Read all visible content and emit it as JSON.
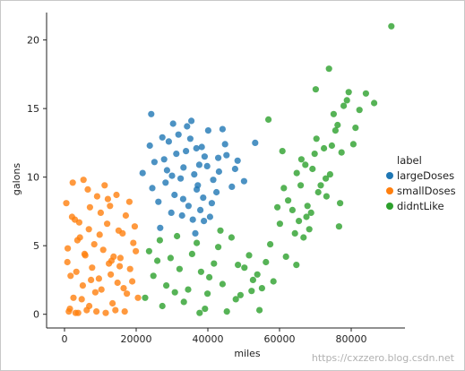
{
  "chart_data": {
    "type": "scatter",
    "title": "",
    "xlabel": "miles",
    "ylabel": "galons",
    "xlim": [
      -5000,
      95000
    ],
    "ylim": [
      -1,
      22
    ],
    "x_ticks": [
      0,
      20000,
      40000,
      60000,
      80000
    ],
    "x_tick_labels": [
      "0",
      "20000",
      "40000",
      "60000",
      "80000"
    ],
    "y_ticks": [
      0,
      5,
      10,
      15,
      20
    ],
    "y_tick_labels": [
      "0",
      "5",
      "10",
      "15",
      "20"
    ],
    "grid": false,
    "legend": {
      "title": "label",
      "placement": "right",
      "entries": [
        "largeDoses",
        "smallDoses",
        "didntLike"
      ]
    },
    "series": [
      {
        "name": "largeDoses",
        "color": "#1f77b4",
        "x": [
          30000,
          24500,
          27800,
          33200,
          36800,
          41500,
          45200,
          38700,
          29100,
          34600,
          43100,
          31800,
          37200,
          26200,
          48300,
          39800,
          35100,
          28600,
          42400,
          33900,
          40100,
          25100,
          46700,
          37900,
          32400,
          30700,
          44800,
          36200,
          27300,
          39100,
          35800,
          41100,
          29800,
          34200,
          38300,
          31200,
          47600,
          36900,
          33100,
          23800,
          28200,
          42900,
          37600,
          40600,
          35400,
          30300,
          44100,
          26700,
          38900,
          32800,
          24200,
          50100,
          36500,
          21800,
          53200
        ],
        "y": [
          10.1,
          9.2,
          11.3,
          10.7,
          12.1,
          9.8,
          11.6,
          8.5,
          12.6,
          7.9,
          10.4,
          13.1,
          9.4,
          8.2,
          11.2,
          10.8,
          12.8,
          10.5,
          8.9,
          11.9,
          13.4,
          11.1,
          9.3,
          7.6,
          9.9,
          8.7,
          12.4,
          10.2,
          12.9,
          11.5,
          6.9,
          8.1,
          7.4,
          13.7,
          12.2,
          11.7,
          10.6,
          9.1,
          8.4,
          12.3,
          9.6,
          11.4,
          10.9,
          7.1,
          14.1,
          13.9,
          13.5,
          6.3,
          6.8,
          7.2,
          14.6,
          9.7,
          5.9,
          10.3,
          12.5
        ]
      },
      {
        "name": "smallDoses",
        "color": "#ff7f0e",
        "x": [
          1200,
          3800,
          6200,
          8900,
          11500,
          14200,
          16800,
          2500,
          5100,
          7700,
          10300,
          12900,
          15600,
          18300,
          900,
          4300,
          6800,
          9600,
          13100,
          17400,
          2100,
          5600,
          8300,
          11900,
          14800,
          19200,
          3300,
          7100,
          10800,
          15100,
          500,
          4800,
          9100,
          12400,
          16200,
          18900,
          2900,
          6500,
          10100,
          13700,
          17100,
          1700,
          5300,
          8600,
          12100,
          15400,
          19600,
          3600,
          7400,
          11200,
          14500,
          800,
          4100,
          6900,
          9800,
          13400,
          16500,
          2300,
          5800,
          12700,
          18100,
          20500,
          19900,
          1500,
          3100
        ],
        "y": [
          0.2,
          0.1,
          0.3,
          0.2,
          0.1,
          0.3,
          0.2,
          1.2,
          2.1,
          3.4,
          1.8,
          2.9,
          4.1,
          3.3,
          4.8,
          5.6,
          6.2,
          2.6,
          3.9,
          1.5,
          7.1,
          4.4,
          5.1,
          6.6,
          2.3,
          5.2,
          3.1,
          7.8,
          4.7,
          6.1,
          8.1,
          1.1,
          8.6,
          3.7,
          5.9,
          2.4,
          6.9,
          9.1,
          7.4,
          4.2,
          7.2,
          2.8,
          9.8,
          1.6,
          8.4,
          3.5,
          6.4,
          5.4,
          2.5,
          9.4,
          8.7,
          3.8,
          6.7,
          0.6,
          5.8,
          0.8,
          1.9,
          9.6,
          4.3,
          7.9,
          8.2,
          1.2,
          4.6,
          0.4,
          0.1
        ]
      },
      {
        "name": "didntLike",
        "color": "#2ca02c",
        "x": [
          22500,
          24800,
          27300,
          29600,
          32100,
          34500,
          36900,
          39200,
          41700,
          44100,
          46600,
          49100,
          51500,
          53800,
          56200,
          23600,
          28400,
          33300,
          38100,
          42900,
          47800,
          52600,
          57400,
          25900,
          30800,
          35600,
          40400,
          45300,
          50200,
          55100,
          43500,
          37700,
          31400,
          48400,
          54400,
          26600,
          39900,
          58300,
          60100,
          62400,
          64300,
          65900,
          67500,
          69200,
          70800,
          72400,
          74100,
          75600,
          77300,
          61200,
          63600,
          66100,
          68300,
          70300,
          72900,
          75100,
          76900,
          78800,
          80600,
          82300,
          84100,
          86400,
          91200,
          61800,
          64800,
          67800,
          69800,
          73100,
          76200,
          79300,
          65400,
          71500,
          74600,
          66700,
          60800,
          76600,
          81200,
          73800,
          68800,
          67200,
          70100,
          77900,
          59400,
          64700,
          56900,
          52200
        ],
        "y": [
          1.2,
          2.8,
          0.6,
          4.1,
          3.3,
          1.8,
          5.2,
          0.4,
          3.7,
          2.2,
          5.6,
          1.4,
          4.3,
          2.9,
          3.8,
          4.6,
          2.1,
          0.9,
          3.1,
          4.9,
          1.1,
          2.5,
          5.1,
          3.9,
          1.6,
          4.4,
          2.7,
          0.2,
          3.4,
          1.9,
          6.1,
          0.1,
          5.7,
          3.6,
          0.3,
          5.4,
          1.5,
          2.4,
          6.6,
          8.3,
          5.9,
          9.4,
          7.1,
          10.6,
          8.9,
          12.1,
          10.2,
          13.4,
          11.8,
          9.2,
          7.6,
          11.3,
          6.2,
          12.8,
          9.9,
          14.6,
          8.1,
          15.6,
          12.4,
          14.9,
          16.1,
          15.4,
          21.0,
          4.2,
          10.3,
          7.9,
          11.7,
          8.6,
          13.8,
          16.2,
          6.8,
          9.4,
          12.3,
          5.6,
          11.9,
          6.4,
          13.6,
          17.9,
          7.4,
          10.9,
          16.4,
          15.2,
          7.8,
          3.6,
          14.2,
          1.7
        ]
      }
    ]
  },
  "watermark": "https://cxzzero.blog.csdn.net"
}
